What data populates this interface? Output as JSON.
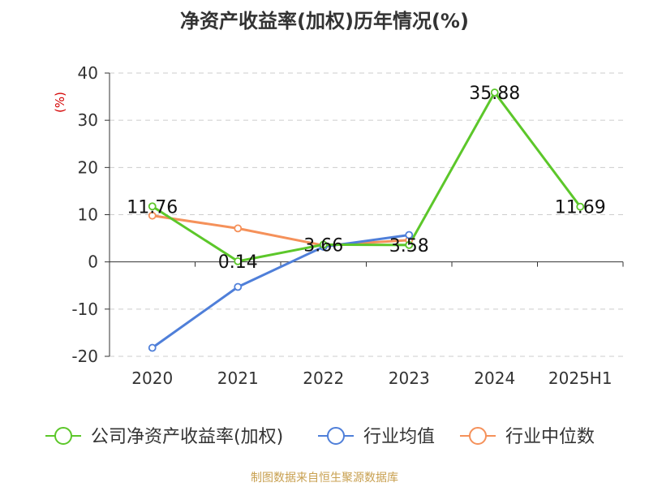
{
  "title": "净资产收益率(加权)历年情况(%)",
  "footer": "制图数据来自恒生聚源数据库",
  "chart_data": {
    "type": "line",
    "title": "净资产收益率(加权)历年情况(%)",
    "ylabel": "(%)",
    "categories": [
      "2020",
      "2021",
      "2022",
      "2023",
      "2024",
      "2025H1"
    ],
    "ylim": [
      -20,
      40
    ],
    "yticks": [
      40,
      30,
      20,
      10,
      0,
      -10,
      -20
    ],
    "grid": true,
    "legend_position": "bottom",
    "series": [
      {
        "name": "公司净资产收益率(加权)",
        "color": "#5cc72a",
        "values": [
          11.76,
          0.14,
          3.66,
          3.58,
          35.88,
          11.69
        ],
        "labels": [
          "11.76",
          "0.14",
          "3.66",
          "3.58",
          "35.88",
          "11.69"
        ]
      },
      {
        "name": "行业均值",
        "color": "#4f7fd9",
        "values": [
          -18.2,
          -5.3,
          3.2,
          5.7,
          null,
          null
        ]
      },
      {
        "name": "行业中位数",
        "color": "#f5915a",
        "values": [
          9.8,
          7.1,
          3.5,
          4.6,
          null,
          null
        ]
      }
    ]
  }
}
